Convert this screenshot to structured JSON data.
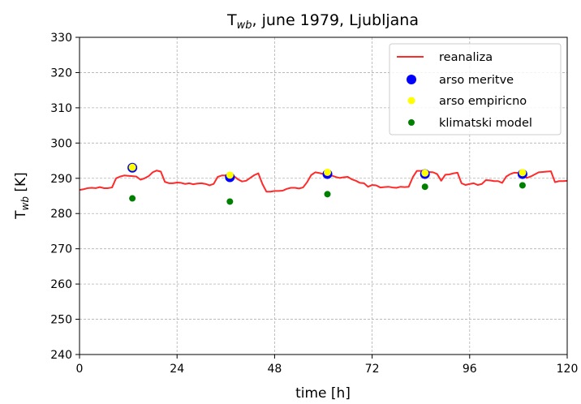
{
  "chart_data": {
    "type": "line",
    "title": {
      "main": "T",
      "sub": "wb",
      "rest": ", june 1979, Ljubljana"
    },
    "xlabel": "time [h]",
    "ylabel": {
      "main": "T",
      "sub": "wb",
      "rest": " [K]"
    },
    "xlim": [
      0,
      120
    ],
    "ylim": [
      240,
      330
    ],
    "xticks": [
      0,
      24,
      48,
      72,
      96,
      120
    ],
    "yticks": [
      240,
      250,
      260,
      270,
      280,
      290,
      300,
      310,
      320,
      330
    ],
    "grid": true,
    "legend_position": "top-right",
    "series": [
      {
        "name": "reanaliza",
        "kind": "line",
        "color": "#ff2a2a",
        "x": [
          0,
          1,
          2,
          3,
          4,
          5,
          6,
          7,
          8,
          9,
          10,
          11,
          12,
          13,
          14,
          15,
          16,
          17,
          18,
          19,
          20,
          21,
          22,
          23,
          24,
          25,
          26,
          27,
          28,
          29,
          30,
          31,
          32,
          33,
          34,
          35,
          36,
          37,
          38,
          39,
          40,
          41,
          42,
          43,
          44,
          45,
          46,
          47,
          48,
          49,
          50,
          51,
          52,
          53,
          54,
          55,
          56,
          57,
          58,
          59,
          60,
          61,
          62,
          63,
          64,
          65,
          66,
          67,
          68,
          69,
          70,
          71,
          72,
          73,
          74,
          75,
          76,
          77,
          78,
          79,
          80,
          81,
          82,
          83,
          84,
          85,
          86,
          87,
          88,
          89,
          90,
          91,
          92,
          93,
          94,
          95,
          96,
          97,
          98,
          99,
          100,
          101,
          102,
          103,
          104,
          105,
          106,
          107,
          108,
          109,
          110,
          111,
          112,
          113,
          114,
          115,
          116,
          117,
          118,
          119,
          120
        ],
        "values": [
          286.7,
          286.9,
          287.2,
          287.3,
          287.2,
          287.5,
          287.2,
          287.2,
          287.4,
          290.0,
          290.5,
          290.8,
          290.7,
          290.6,
          290.5,
          289.6,
          290.0,
          290.6,
          291.7,
          292.2,
          291.9,
          289.0,
          288.6,
          288.6,
          288.8,
          288.7,
          288.4,
          288.6,
          288.3,
          288.5,
          288.6,
          288.4,
          288.0,
          288.4,
          290.4,
          290.8,
          290.8,
          290.6,
          290.6,
          289.7,
          289.1,
          289.3,
          290.1,
          290.9,
          291.4,
          288.4,
          286.2,
          286.2,
          286.4,
          286.4,
          286.5,
          287.0,
          287.3,
          287.3,
          287.1,
          287.4,
          288.9,
          290.9,
          291.7,
          291.5,
          291.2,
          290.7,
          290.8,
          290.4,
          290.1,
          290.3,
          290.4,
          289.7,
          289.3,
          288.7,
          288.6,
          287.6,
          288.1,
          288.0,
          287.4,
          287.5,
          287.6,
          287.4,
          287.3,
          287.6,
          287.5,
          287.6,
          290.3,
          292.1,
          292.1,
          292.2,
          291.8,
          291.7,
          291.2,
          289.3,
          291.0,
          291.1,
          291.4,
          291.6,
          288.6,
          288.1,
          288.4,
          288.6,
          288.1,
          288.4,
          289.5,
          289.4,
          289.2,
          289.2,
          288.7,
          290.5,
          291.2,
          291.6,
          291.5,
          291.4,
          290.1,
          290.5,
          291.1,
          291.7,
          291.8,
          291.9,
          292.0,
          288.9,
          289.2,
          289.2,
          289.3
        ]
      },
      {
        "name": "arso meritve",
        "kind": "scatter",
        "color": "#0000ff",
        "x": [
          13,
          37,
          61,
          85,
          109
        ],
        "values": [
          293.0,
          290.3,
          291.2,
          291.2,
          291.2
        ]
      },
      {
        "name": "arso empiricno",
        "kind": "scatter",
        "color": "#ffff00",
        "x": [
          13,
          37,
          61,
          85,
          109
        ],
        "values": [
          293.1,
          290.9,
          291.7,
          291.5,
          291.6
        ]
      },
      {
        "name": "klimatski model",
        "kind": "scatter",
        "color": "#008000",
        "x": [
          13,
          37,
          61,
          85,
          109
        ],
        "values": [
          284.3,
          283.4,
          285.5,
          287.6,
          288.0
        ]
      }
    ]
  }
}
